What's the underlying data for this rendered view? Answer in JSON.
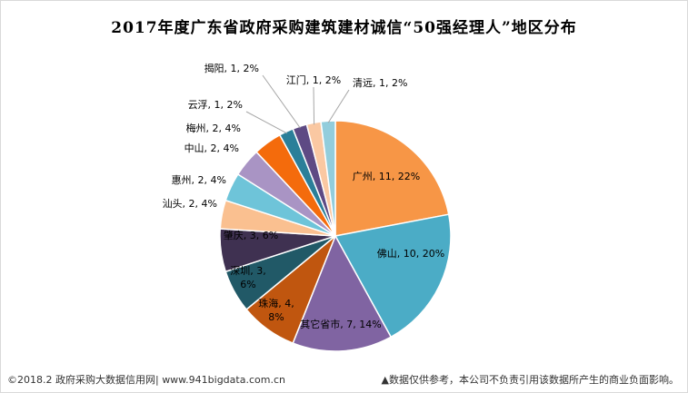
{
  "chart_data": {
    "type": "pie",
    "title": "2017年度广东省政府采购建筑建材诚信“50强经理人”地区分布",
    "slices": [
      {
        "label": "广州, 11, 22%",
        "value": 11,
        "color": "#F79646"
      },
      {
        "label": "佛山, 10, 20%",
        "value": 10,
        "color": "#4BACC6"
      },
      {
        "label": "其它省市, 7, 14%",
        "value": 7,
        "color": "#8064A2"
      },
      {
        "label": "珠海, 4,\n8%",
        "value": 4,
        "color": "#C0560F"
      },
      {
        "label": "深圳, 3,\n6%",
        "value": 3,
        "color": "#215967"
      },
      {
        "label": "肇庆, 3, 6%",
        "value": 3,
        "color": "#3F3151"
      },
      {
        "label": "汕头, 2, 4%",
        "value": 2,
        "color": "#FAC090"
      },
      {
        "label": "惠州, 2, 4%",
        "value": 2,
        "color": "#6EC4D9"
      },
      {
        "label": "中山, 2, 4%",
        "value": 2,
        "color": "#A994C4"
      },
      {
        "label": "梅州, 2, 4%",
        "value": 2,
        "color": "#F46B0C"
      },
      {
        "label": "云浮, 1, 2%",
        "value": 1,
        "color": "#2B7F99"
      },
      {
        "label": "揭阳, 1, 2%",
        "value": 1,
        "color": "#5E4A84"
      },
      {
        "label": "江门, 1, 2%",
        "value": 1,
        "color": "#FAC8A2"
      },
      {
        "label": "清远, 1, 2%",
        "value": 1,
        "color": "#92CDDC"
      }
    ]
  },
  "footer": {
    "left": "©2018.2 政府采购大数据信用网| www.941bigdata.com.cn",
    "right": "▲数据仅供参考，本公司不负责引用该数据所产生的商业负面影响。"
  }
}
